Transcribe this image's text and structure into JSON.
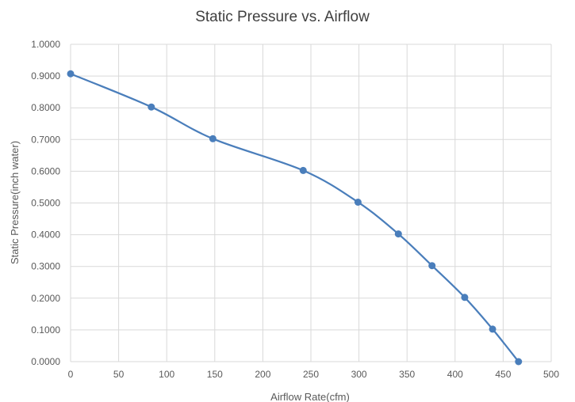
{
  "chart_data": {
    "type": "scatter",
    "title": "Static Pressure vs. Airflow",
    "xlabel": "Airflow Rate(cfm)",
    "ylabel": "Static Pressure(inch water)",
    "xlim": [
      0,
      500
    ],
    "ylim": [
      0,
      1.0
    ],
    "xticks": [
      "0",
      "50",
      "100",
      "150",
      "200",
      "250",
      "300",
      "350",
      "400",
      "450",
      "500"
    ],
    "yticks": [
      "0.0000",
      "0.1000",
      "0.2000",
      "0.3000",
      "0.4000",
      "0.5000",
      "0.6000",
      "0.7000",
      "0.8000",
      "0.9000",
      "1.0000"
    ],
    "grid": true,
    "smooth": true,
    "series": [
      {
        "color": "#4a7ebb",
        "x": [
          0,
          84,
          148,
          242,
          299,
          341,
          376,
          410,
          439,
          466
        ],
        "y": [
          0.9071,
          0.8025,
          0.7025,
          0.6025,
          0.5025,
          0.4025,
          0.3025,
          0.2025,
          0.1025,
          0.0
        ]
      }
    ]
  }
}
